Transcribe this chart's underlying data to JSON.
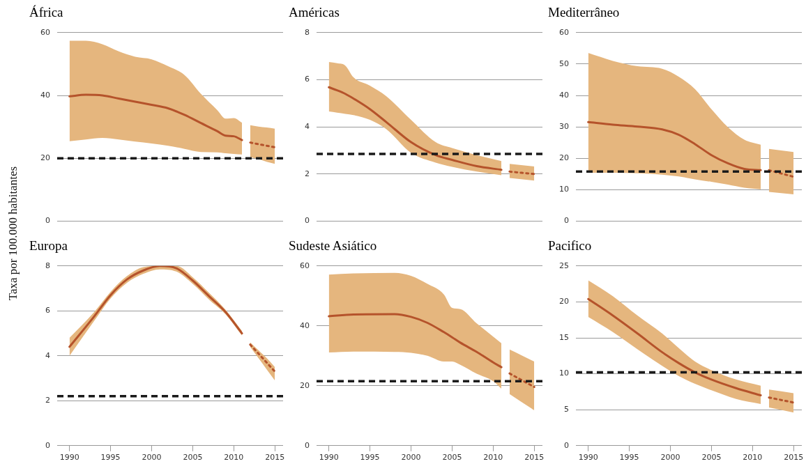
{
  "chart_data": [
    {
      "type": "line",
      "title": "África",
      "ylabel": "Taxa por 100.000 habitantes",
      "xlim": [
        1988.5,
        2016
      ],
      "xticks": [
        1990,
        1995,
        2000,
        2005,
        2010,
        2015
      ],
      "ylim": [
        0,
        60
      ],
      "yticks": [
        0,
        20,
        40,
        60
      ],
      "grid": "y",
      "tick_labels": "y",
      "legend": false,
      "marker": "none",
      "ref_lines": [
        {
          "axis": "y",
          "value": 20,
          "color": "#1a1a1a",
          "line_style": "dashed"
        }
      ],
      "series": [
        {
          "color": "#b5532b",
          "line_style": "solid",
          "x": [
            1990,
            1992,
            1994,
            1996,
            1998,
            2000,
            2002,
            2004,
            2006,
            2008,
            2009,
            2010,
            2011
          ],
          "values": [
            39.7,
            40.2,
            40.0,
            39.0,
            38.0,
            37.0,
            35.9,
            33.8,
            31.2,
            28.6,
            27.2,
            27.0,
            25.8
          ],
          "upper": [
            57.4,
            57.4,
            56.3,
            54.0,
            52.3,
            51.5,
            49.3,
            46.5,
            40.5,
            35.3,
            32.6,
            32.8,
            31.3
          ],
          "lower": [
            25.4,
            26.0,
            26.5,
            26.0,
            25.3,
            24.7,
            24.0,
            23.0,
            22.0,
            21.9,
            21.6,
            21.4,
            21.2
          ]
        },
        {
          "color": "#b5532b",
          "line_style": "dotted",
          "x": [
            2012,
            2013,
            2014,
            2015
          ],
          "values": [
            25,
            24.5,
            24,
            23.5
          ],
          "upper": [
            30.5,
            30.1,
            29.8,
            29.4
          ],
          "lower": [
            20.4,
            19.7,
            18.9,
            18.2
          ]
        }
      ]
    },
    {
      "type": "line",
      "title": "Américas",
      "xlim": [
        1988.5,
        2016
      ],
      "xticks": [
        1990,
        1995,
        2000,
        2005,
        2010,
        2015
      ],
      "ylim": [
        0,
        8
      ],
      "yticks": [
        0,
        2,
        4,
        6,
        8
      ],
      "grid": "y",
      "tick_labels": "y",
      "legend": false,
      "marker": "none",
      "ref_lines": [
        {
          "axis": "y",
          "value": 2.85,
          "color": "#1a1a1a",
          "line_style": "dashed"
        }
      ],
      "series": [
        {
          "color": "#b5532b",
          "line_style": "solid",
          "x": [
            1990,
            1991,
            1992,
            1993,
            1995,
            1997,
            2000,
            2003,
            2005,
            2008,
            2011
          ],
          "values": [
            5.68,
            5.55,
            5.4,
            5.2,
            4.75,
            4.2,
            3.35,
            2.8,
            2.6,
            2.33,
            2.18
          ],
          "upper": [
            6.75,
            6.7,
            6.6,
            6.1,
            5.75,
            5.3,
            4.3,
            3.35,
            3.1,
            2.8,
            2.55
          ],
          "lower": [
            4.65,
            4.6,
            4.55,
            4.5,
            4.3,
            3.9,
            2.9,
            2.48,
            2.3,
            2.1,
            1.95
          ]
        },
        {
          "color": "#b5532b",
          "line_style": "dotted",
          "x": [
            2012,
            2015
          ],
          "values": [
            2.1,
            2.0
          ],
          "upper": [
            2.43,
            2.32
          ],
          "lower": [
            1.83,
            1.72
          ]
        }
      ]
    },
    {
      "type": "line",
      "title": "Mediterrâneo",
      "xlim": [
        1988.5,
        2016
      ],
      "xticks": [
        1990,
        1995,
        2000,
        2005,
        2010,
        2015
      ],
      "ylim": [
        0,
        60
      ],
      "yticks": [
        0,
        10,
        20,
        30,
        40,
        50,
        60
      ],
      "grid": "y",
      "tick_labels": "y",
      "legend": false,
      "marker": "none",
      "ref_lines": [
        {
          "axis": "y",
          "value": 15.8,
          "color": "#1a1a1a",
          "line_style": "dashed"
        }
      ],
      "series": [
        {
          "color": "#b5532b",
          "line_style": "solid",
          "x": [
            1990,
            1993,
            1996,
            1999,
            2001,
            2003,
            2005,
            2007,
            2009,
            2011
          ],
          "values": [
            31.5,
            30.7,
            30.1,
            29.2,
            27.5,
            24.5,
            21.0,
            18.4,
            16.6,
            16.2
          ],
          "upper": [
            53.5,
            51,
            49.3,
            48.5,
            46,
            42,
            35.6,
            29.9,
            25.9,
            24.3
          ],
          "lower": [
            15.4,
            15.4,
            15.2,
            14.8,
            14.2,
            13.3,
            12.5,
            11.6,
            10.6,
            10.1
          ]
        },
        {
          "color": "#b5532b",
          "line_style": "dotted",
          "x": [
            2012,
            2015
          ],
          "values": [
            16.2,
            14.1
          ],
          "upper": [
            23,
            22
          ],
          "lower": [
            9.3,
            8.5
          ]
        }
      ]
    },
    {
      "type": "line",
      "title": "Europa",
      "xlim": [
        1988.5,
        2016
      ],
      "xticks": [
        1990,
        1995,
        2000,
        2005,
        2010,
        2015
      ],
      "ylim": [
        0,
        8
      ],
      "yticks": [
        0,
        2,
        4,
        6,
        8
      ],
      "grid": "y",
      "legend": false,
      "marker": "none",
      "ref_lines": [
        {
          "axis": "y",
          "value": 2.2,
          "color": "#1a1a1a",
          "line_style": "dashed"
        }
      ],
      "series": [
        {
          "color": "#b5532b",
          "line_style": "solid",
          "x": [
            1990,
            1993,
            1995,
            1997,
            1999,
            2001,
            2003,
            2005,
            2007,
            2009,
            2011
          ],
          "values": [
            4.4,
            5.75,
            6.7,
            7.4,
            7.8,
            8.0,
            7.9,
            7.35,
            6.65,
            5.95,
            5.0
          ],
          "upper": [
            4.8,
            5.95,
            6.85,
            7.55,
            7.95,
            8.0,
            8.0,
            7.5,
            6.8,
            6.05,
            5.1
          ],
          "lower": [
            4.0,
            5.55,
            6.55,
            7.25,
            7.65,
            7.85,
            7.75,
            7.2,
            6.5,
            5.85,
            4.9
          ]
        },
        {
          "color": "#b5532b",
          "line_style": "dotted",
          "x": [
            2012,
            2013,
            2014,
            2015
          ],
          "values": [
            4.5,
            4.1,
            3.7,
            3.3
          ],
          "upper": [
            4.6,
            4.25,
            3.9,
            3.5
          ],
          "lower": [
            4.4,
            3.9,
            3.4,
            2.9
          ]
        }
      ]
    },
    {
      "type": "line",
      "title": "Sudeste Asiático",
      "xlim": [
        1988.5,
        2016
      ],
      "xticks": [
        1990,
        1995,
        2000,
        2005,
        2010,
        2015
      ],
      "ylim": [
        0,
        60
      ],
      "yticks": [
        0,
        20,
        40,
        60
      ],
      "grid": "y",
      "legend": false,
      "marker": "none",
      "ref_lines": [
        {
          "axis": "y",
          "value": 21.5,
          "color": "#1a1a1a",
          "line_style": "dashed"
        }
      ],
      "series": [
        {
          "color": "#b5532b",
          "line_style": "solid",
          "x": [
            1990,
            1993,
            1998,
            2000,
            2002,
            2004,
            2005,
            2006,
            2008,
            2010,
            2011
          ],
          "values": [
            43.2,
            43.8,
            43.9,
            43,
            41,
            37.9,
            36.2,
            34.4,
            31.3,
            27.8,
            26.2
          ],
          "upper": [
            57.1,
            57.5,
            57.7,
            56.7,
            54,
            50.5,
            46,
            45.6,
            40.8,
            36.4,
            34.2
          ],
          "lower": [
            31.1,
            31.4,
            31.3,
            31,
            30,
            28.1,
            28.1,
            27,
            24,
            21.5,
            19
          ]
        },
        {
          "color": "#b5532b",
          "line_style": "dotted",
          "x": [
            2012,
            2015
          ],
          "values": [
            24.1,
            19.6
          ],
          "upper": [
            32.1,
            28.1
          ],
          "lower": [
            17.2,
            11.8
          ]
        }
      ]
    },
    {
      "type": "line",
      "title": "Pacifico",
      "xlim": [
        1988.5,
        2016
      ],
      "xticks": [
        1990,
        1995,
        2000,
        2005,
        2010,
        2015
      ],
      "ylim": [
        0,
        25
      ],
      "yticks": [
        0,
        5,
        10,
        15,
        20,
        25
      ],
      "grid": "y",
      "legend": false,
      "marker": "none",
      "ref_lines": [
        {
          "axis": "y",
          "value": 10.2,
          "color": "#1a1a1a",
          "line_style": "dashed"
        }
      ],
      "series": [
        {
          "color": "#b5532b",
          "line_style": "solid",
          "x": [
            1990,
            1993,
            1996,
            1999,
            2001,
            2003,
            2005,
            2008,
            2011
          ],
          "values": [
            20.4,
            18.1,
            15.6,
            13,
            11.5,
            10.2,
            9.2,
            8.0,
            7.0
          ],
          "upper": [
            23,
            20.8,
            18.1,
            15.6,
            13.6,
            11.7,
            10.5,
            9.2,
            8.35
          ],
          "lower": [
            17.9,
            15.8,
            13.4,
            11.1,
            9.7,
            8.6,
            7.7,
            6.5,
            5.8
          ]
        },
        {
          "color": "#b5532b",
          "line_style": "dotted",
          "x": [
            2012,
            2015
          ],
          "values": [
            6.7,
            6.0
          ],
          "upper": [
            7.8,
            7.3
          ],
          "lower": [
            5.3,
            4.6
          ]
        }
      ]
    }
  ]
}
